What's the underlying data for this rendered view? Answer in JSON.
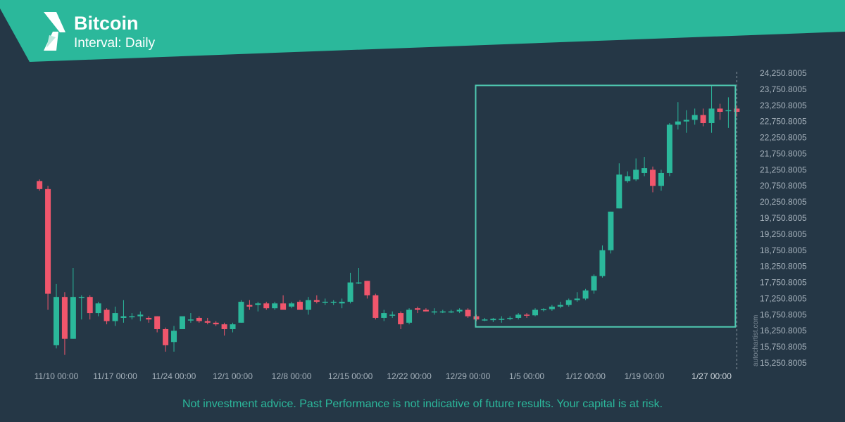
{
  "header": {
    "title": "Bitcoin",
    "subtitle": "Interval: Daily",
    "logo_icon": "autochartist-logo-icon",
    "banner_color": "#2bb89b"
  },
  "disclaimer": "Not investment advice. Past Performance is not indicative of future results. Your capital is at risk.",
  "watermark": "autochartist.com",
  "colors": {
    "background": "#253746",
    "up": "#2bb89b",
    "down": "#f0566c",
    "pattern_box": "#4fc8b0",
    "axis_text": "#a6b2bc"
  },
  "chart_data": {
    "type": "candlestick",
    "title": "Bitcoin",
    "subtitle": "Interval: Daily",
    "ylim": [
      15000,
      24400
    ],
    "y_ticks": [
      "24,250.8005",
      "23,750.8005",
      "23,250.8005",
      "22,750.8005",
      "22,250.8005",
      "21,750.8005",
      "21,250.8005",
      "20,750.8005",
      "20,250.8005",
      "19,750.8005",
      "19,250.8005",
      "18,750.8005",
      "18,250.8005",
      "17,750.8005",
      "17,250.8005",
      "16,750.8005",
      "16,250.8005",
      "15,750.8005",
      "15,250.8005"
    ],
    "y_tick_values": [
      24250.8005,
      23750.8005,
      23250.8005,
      22750.8005,
      22250.8005,
      21750.8005,
      21250.8005,
      20750.8005,
      20250.8005,
      19750.8005,
      19250.8005,
      18750.8005,
      18250.8005,
      17750.8005,
      17250.8005,
      16750.8005,
      16250.8005,
      15750.8005,
      15250.8005
    ],
    "x_ticks": [
      {
        "label": "11/10 00:00",
        "date": "2022-11-10"
      },
      {
        "label": "11/17 00:00",
        "date": "2022-11-17"
      },
      {
        "label": "11/24 00:00",
        "date": "2022-11-24"
      },
      {
        "label": "12/1 00:00",
        "date": "2022-12-01"
      },
      {
        "label": "12/8 00:00",
        "date": "2022-12-08"
      },
      {
        "label": "12/15 00:00",
        "date": "2022-12-15"
      },
      {
        "label": "12/22 00:00",
        "date": "2022-12-22"
      },
      {
        "label": "12/29 00:00",
        "date": "2022-12-29"
      },
      {
        "label": "1/5 00:00",
        "date": "2023-01-05"
      },
      {
        "label": "1/12 00:00",
        "date": "2023-01-12"
      },
      {
        "label": "1/19 00:00",
        "date": "2023-01-19"
      },
      {
        "label": "1/27 00:00",
        "date": "2023-01-27",
        "highlight": true
      }
    ],
    "candles": [
      {
        "date": "2022-11-08",
        "o": 20900,
        "h": 20950,
        "l": 20600,
        "c": 20650
      },
      {
        "date": "2022-11-09",
        "o": 20650,
        "h": 20750,
        "l": 16900,
        "c": 17400
      },
      {
        "date": "2022-11-10",
        "o": 15800,
        "h": 17700,
        "l": 15700,
        "c": 17300
      },
      {
        "date": "2022-11-11",
        "o": 17300,
        "h": 17450,
        "l": 15500,
        "c": 16000
      },
      {
        "date": "2022-11-12",
        "o": 16000,
        "h": 18200,
        "l": 16000,
        "c": 17300
      },
      {
        "date": "2022-11-13",
        "o": 17300,
        "h": 17350,
        "l": 16600,
        "c": 17300
      },
      {
        "date": "2022-11-14",
        "o": 17300,
        "h": 17350,
        "l": 16600,
        "c": 16800
      },
      {
        "date": "2022-11-15",
        "o": 16800,
        "h": 17150,
        "l": 16700,
        "c": 17100
      },
      {
        "date": "2022-11-16",
        "o": 16900,
        "h": 16950,
        "l": 16450,
        "c": 16550
      },
      {
        "date": "2022-11-17",
        "o": 16550,
        "h": 17000,
        "l": 16400,
        "c": 16800
      },
      {
        "date": "2022-11-18",
        "o": 16650,
        "h": 17200,
        "l": 16500,
        "c": 16700
      },
      {
        "date": "2022-11-19",
        "o": 16700,
        "h": 16800,
        "l": 16600,
        "c": 16700
      },
      {
        "date": "2022-11-20",
        "o": 16700,
        "h": 16850,
        "l": 16550,
        "c": 16750
      },
      {
        "date": "2022-11-21",
        "o": 16650,
        "h": 16700,
        "l": 16500,
        "c": 16600
      },
      {
        "date": "2022-11-22",
        "o": 16700,
        "h": 16700,
        "l": 16200,
        "c": 16300
      },
      {
        "date": "2022-11-23",
        "o": 16300,
        "h": 16350,
        "l": 15600,
        "c": 15800
      },
      {
        "date": "2022-11-24",
        "o": 15900,
        "h": 16400,
        "l": 15600,
        "c": 16250
      },
      {
        "date": "2022-11-25",
        "o": 16300,
        "h": 16650,
        "l": 16300,
        "c": 16700
      },
      {
        "date": "2022-11-26",
        "o": 16600,
        "h": 16800,
        "l": 16500,
        "c": 16600
      },
      {
        "date": "2022-11-27",
        "o": 16650,
        "h": 16700,
        "l": 16500,
        "c": 16550
      },
      {
        "date": "2022-11-28",
        "o": 16550,
        "h": 16650,
        "l": 16450,
        "c": 16500
      },
      {
        "date": "2022-11-29",
        "o": 16500,
        "h": 16550,
        "l": 16400,
        "c": 16450
      },
      {
        "date": "2022-11-30",
        "o": 16450,
        "h": 16500,
        "l": 16100,
        "c": 16300
      },
      {
        "date": "2022-12-01",
        "o": 16300,
        "h": 16500,
        "l": 16200,
        "c": 16450
      },
      {
        "date": "2022-12-02",
        "o": 16500,
        "h": 17200,
        "l": 16500,
        "c": 17150
      },
      {
        "date": "2022-12-03",
        "o": 17050,
        "h": 17200,
        "l": 16900,
        "c": 17000
      },
      {
        "date": "2022-12-04",
        "o": 17050,
        "h": 17150,
        "l": 16850,
        "c": 17100
      },
      {
        "date": "2022-12-05",
        "o": 17100,
        "h": 17150,
        "l": 16900,
        "c": 16950
      },
      {
        "date": "2022-12-06",
        "o": 16950,
        "h": 17150,
        "l": 16900,
        "c": 17100
      },
      {
        "date": "2022-12-07",
        "o": 17100,
        "h": 17350,
        "l": 16950,
        "c": 16900
      },
      {
        "date": "2022-12-08",
        "o": 17000,
        "h": 17150,
        "l": 16950,
        "c": 17100
      },
      {
        "date": "2022-12-09",
        "o": 17150,
        "h": 17200,
        "l": 16900,
        "c": 16900
      },
      {
        "date": "2022-12-10",
        "o": 16900,
        "h": 17300,
        "l": 16750,
        "c": 17200
      },
      {
        "date": "2022-12-11",
        "o": 17200,
        "h": 17350,
        "l": 17100,
        "c": 17150
      },
      {
        "date": "2022-12-12",
        "o": 17150,
        "h": 17250,
        "l": 17050,
        "c": 17150
      },
      {
        "date": "2022-12-13",
        "o": 17150,
        "h": 17200,
        "l": 17050,
        "c": 17150
      },
      {
        "date": "2022-12-14",
        "o": 17100,
        "h": 17250,
        "l": 16950,
        "c": 17150
      },
      {
        "date": "2022-12-15",
        "o": 17150,
        "h": 18050,
        "l": 17100,
        "c": 17750
      },
      {
        "date": "2022-12-16",
        "o": 17750,
        "h": 18200,
        "l": 17700,
        "c": 17750
      },
      {
        "date": "2022-12-17",
        "o": 17800,
        "h": 17800,
        "l": 17250,
        "c": 17350
      },
      {
        "date": "2022-12-18",
        "o": 17350,
        "h": 17400,
        "l": 16600,
        "c": 16650
      },
      {
        "date": "2022-12-19",
        "o": 16650,
        "h": 16900,
        "l": 16550,
        "c": 16800
      },
      {
        "date": "2022-12-20",
        "o": 16750,
        "h": 16850,
        "l": 16650,
        "c": 16750
      },
      {
        "date": "2022-12-21",
        "o": 16800,
        "h": 16850,
        "l": 16300,
        "c": 16450
      },
      {
        "date": "2022-12-22",
        "o": 16500,
        "h": 16950,
        "l": 16450,
        "c": 16900
      },
      {
        "date": "2022-12-23",
        "o": 16950,
        "h": 17000,
        "l": 16800,
        "c": 16900
      },
      {
        "date": "2022-12-24",
        "o": 16900,
        "h": 16950,
        "l": 16850,
        "c": 16850
      },
      {
        "date": "2022-12-25",
        "o": 16850,
        "h": 16950,
        "l": 16750,
        "c": 16850
      },
      {
        "date": "2022-12-26",
        "o": 16850,
        "h": 16900,
        "l": 16800,
        "c": 16850
      },
      {
        "date": "2022-12-27",
        "o": 16850,
        "h": 16900,
        "l": 16800,
        "c": 16850
      },
      {
        "date": "2022-12-28",
        "o": 16850,
        "h": 16950,
        "l": 16800,
        "c": 16900
      },
      {
        "date": "2022-12-29",
        "o": 16900,
        "h": 16950,
        "l": 16650,
        "c": 16700
      },
      {
        "date": "2022-12-30",
        "o": 16700,
        "h": 16750,
        "l": 16550,
        "c": 16600
      },
      {
        "date": "2022-12-31",
        "o": 16600,
        "h": 16650,
        "l": 16550,
        "c": 16600
      },
      {
        "date": "2023-01-01",
        "o": 16580,
        "h": 16650,
        "l": 16520,
        "c": 16620
      },
      {
        "date": "2023-01-02",
        "o": 16600,
        "h": 16700,
        "l": 16500,
        "c": 16620
      },
      {
        "date": "2023-01-03",
        "o": 16620,
        "h": 16700,
        "l": 16580,
        "c": 16650
      },
      {
        "date": "2023-01-04",
        "o": 16650,
        "h": 16800,
        "l": 16600,
        "c": 16750
      },
      {
        "date": "2023-01-05",
        "o": 16750,
        "h": 16800,
        "l": 16650,
        "c": 16730
      },
      {
        "date": "2023-01-06",
        "o": 16730,
        "h": 16950,
        "l": 16700,
        "c": 16900
      },
      {
        "date": "2023-01-07",
        "o": 16900,
        "h": 16950,
        "l": 16850,
        "c": 16920
      },
      {
        "date": "2023-01-08",
        "o": 16920,
        "h": 17050,
        "l": 16870,
        "c": 17000
      },
      {
        "date": "2023-01-09",
        "o": 17000,
        "h": 17150,
        "l": 16950,
        "c": 17050
      },
      {
        "date": "2023-01-10",
        "o": 17050,
        "h": 17250,
        "l": 17000,
        "c": 17200
      },
      {
        "date": "2023-01-11",
        "o": 17200,
        "h": 17450,
        "l": 17150,
        "c": 17250
      },
      {
        "date": "2023-01-12",
        "o": 17250,
        "h": 17550,
        "l": 17200,
        "c": 17500
      },
      {
        "date": "2023-01-13",
        "o": 17500,
        "h": 18000,
        "l": 17400,
        "c": 17950
      },
      {
        "date": "2023-01-14",
        "o": 17950,
        "h": 18900,
        "l": 17900,
        "c": 18750
      },
      {
        "date": "2023-01-15",
        "o": 18750,
        "h": 19950,
        "l": 18650,
        "c": 19950
      },
      {
        "date": "2023-01-16",
        "o": 20050,
        "h": 21450,
        "l": 20050,
        "c": 21100
      },
      {
        "date": "2023-01-17",
        "o": 20900,
        "h": 21200,
        "l": 20850,
        "c": 21050
      },
      {
        "date": "2023-01-18",
        "o": 20950,
        "h": 21600,
        "l": 20900,
        "c": 21250
      },
      {
        "date": "2023-01-19",
        "o": 21150,
        "h": 21650,
        "l": 21050,
        "c": 21300
      },
      {
        "date": "2023-01-20",
        "o": 21250,
        "h": 21350,
        "l": 20550,
        "c": 20750
      },
      {
        "date": "2023-01-21",
        "o": 20750,
        "h": 21250,
        "l": 20600,
        "c": 21150
      },
      {
        "date": "2023-01-22",
        "o": 21150,
        "h": 22700,
        "l": 21050,
        "c": 22650
      },
      {
        "date": "2023-01-23",
        "o": 22650,
        "h": 23350,
        "l": 22500,
        "c": 22750
      },
      {
        "date": "2023-01-24",
        "o": 22750,
        "h": 23100,
        "l": 22400,
        "c": 22800
      },
      {
        "date": "2023-01-25",
        "o": 22800,
        "h": 23150,
        "l": 22650,
        "c": 22950
      },
      {
        "date": "2023-01-26",
        "o": 22950,
        "h": 23150,
        "l": 22600,
        "c": 22700
      },
      {
        "date": "2023-01-27",
        "o": 22700,
        "h": 23850,
        "l": 22400,
        "c": 23150
      },
      {
        "date": "2023-01-28",
        "o": 23150,
        "h": 23300,
        "l": 22800,
        "c": 23050
      },
      {
        "date": "2023-01-29",
        "o": 23100,
        "h": 23500,
        "l": 22550,
        "c": 23100
      },
      {
        "date": "2023-01-30",
        "o": 23150,
        "h": 23250,
        "l": 22900,
        "c": 23050
      }
    ],
    "pattern_box": {
      "start": "2022-12-30",
      "end": "2023-01-30",
      "y_top": 23870,
      "y_bottom": 16370
    },
    "vline": "2023-01-30",
    "grid": false,
    "legend": "none"
  }
}
